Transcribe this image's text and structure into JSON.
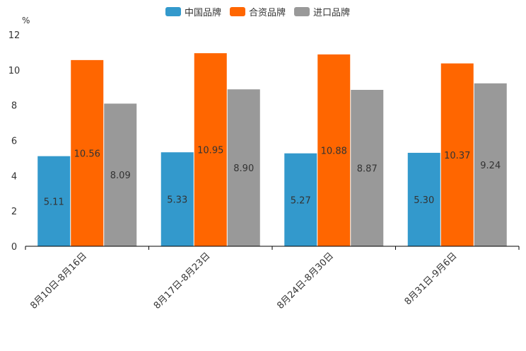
{
  "chart_data": {
    "type": "bar",
    "unit_label": "%",
    "categories": [
      "8月10日-8月16日",
      "8月17日-8月23日",
      "8月24日-8月30日",
      "8月31日-9月6日"
    ],
    "series": [
      {
        "name": "中国品牌",
        "color": "#3399cc",
        "values": [
          5.11,
          5.33,
          5.27,
          5.3
        ],
        "labels": [
          "5.11",
          "5.33",
          "5.27",
          "5.30"
        ]
      },
      {
        "name": "合资品牌",
        "color": "#ff6600",
        "values": [
          10.56,
          10.95,
          10.88,
          10.37
        ],
        "labels": [
          "10.56",
          "10.95",
          "10.88",
          "10.37"
        ]
      },
      {
        "name": "进口品牌",
        "color": "#999999",
        "values": [
          8.09,
          8.9,
          8.87,
          9.24
        ],
        "labels": [
          "8.09",
          "8.90",
          "8.87",
          "9.24"
        ]
      }
    ],
    "ylim": [
      0,
      12
    ],
    "yticks": [
      "0",
      "2",
      "4",
      "6",
      "8",
      "10",
      "12"
    ],
    "legend_position": "top-center"
  }
}
